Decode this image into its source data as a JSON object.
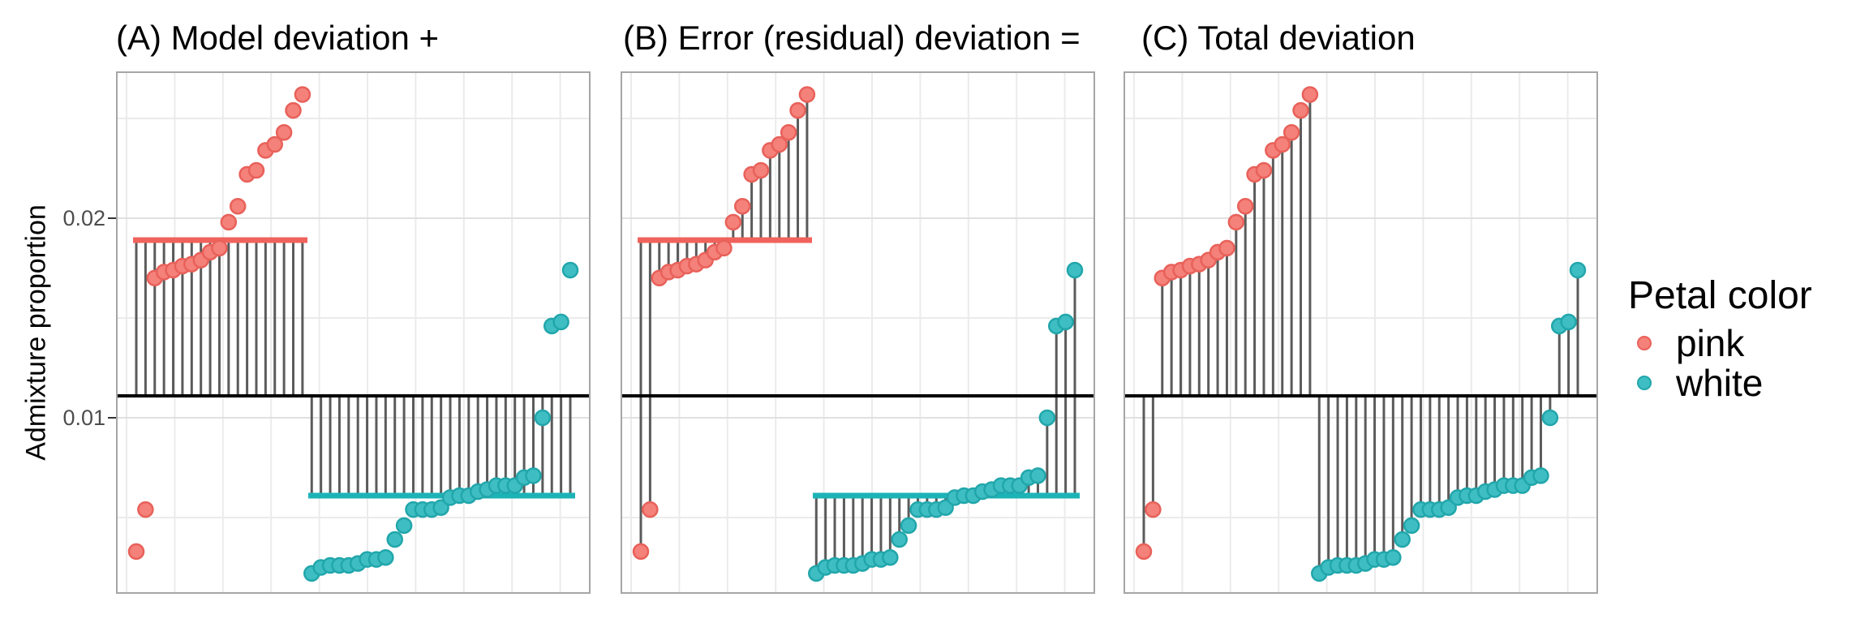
{
  "figure": {
    "panel_titles": {
      "a": "(A) Model deviation +",
      "b": "(B) Error (residual) deviation =",
      "c": "(C) Total deviation"
    },
    "y_axis": {
      "title": "Admixture proportion",
      "ticks": [
        {
          "label": "0.02",
          "value": 0.02
        },
        {
          "label": "0.01",
          "value": 0.01
        }
      ]
    },
    "legend": {
      "title": "Petal color",
      "items": [
        {
          "label": "pink",
          "fill": "#F4817A",
          "stroke": "#E8615A"
        },
        {
          "label": "white",
          "fill": "#3EBEC2",
          "stroke": "#21A6AB"
        }
      ]
    }
  },
  "chart_data": {
    "type": "scatter",
    "title": "ANOVA decomposition of deviations: model + error = total",
    "ylabel": "Admixture proportion",
    "ylim": [
      0.0012,
      0.0274
    ],
    "yticks_major": [
      0.01,
      0.02
    ],
    "yticks_minor": [
      0.005,
      0.015,
      0.025
    ],
    "x_description": "48 individuals ordered within petal-color group by admixture proportion",
    "legend_title": "Petal color",
    "legend_position": "right",
    "grid": true,
    "panels": [
      {
        "id": "A",
        "title": "(A) Model deviation +",
        "segments": "overall_mean_to_group_mean",
        "show_group_mean_lines": true
      },
      {
        "id": "B",
        "title": "(B) Error (residual) deviation =",
        "segments": "group_mean_to_value",
        "show_group_mean_lines": true
      },
      {
        "id": "C",
        "title": "(C) Total deviation",
        "segments": "overall_mean_to_value",
        "show_group_mean_lines": false
      }
    ],
    "series": [
      {
        "name": "pink",
        "n": 19,
        "mean": 0.0189,
        "values": [
          0.0033,
          0.0054,
          0.017,
          0.0173,
          0.0174,
          0.0176,
          0.0177,
          0.0179,
          0.0183,
          0.0185,
          0.0198,
          0.0206,
          0.0222,
          0.0224,
          0.0234,
          0.0237,
          0.0243,
          0.0254,
          0.0262
        ]
      },
      {
        "name": "white",
        "n": 29,
        "mean": 0.0061,
        "values": [
          0.0022,
          0.0025,
          0.0026,
          0.0026,
          0.0026,
          0.0027,
          0.0029,
          0.0029,
          0.003,
          0.0039,
          0.0046,
          0.0054,
          0.0054,
          0.0054,
          0.0055,
          0.006,
          0.0061,
          0.0061,
          0.0063,
          0.0064,
          0.0066,
          0.0066,
          0.0066,
          0.007,
          0.0071,
          0.01,
          0.0146,
          0.0148,
          0.0174
        ]
      }
    ],
    "overall_mean": 0.0111,
    "colors": {
      "pink_point": "#F4817A",
      "pink_point_stroke": "#E8615A",
      "white_point": "#3EBEC2",
      "white_point_stroke": "#21A6AB",
      "pink_mean_line": "#F0625C",
      "white_mean_line": "#1CB3B7",
      "overall_mean_line": "#000000",
      "segment": "#5B5B5B",
      "grid": "#EBEBEB",
      "grid_major": "#E0E0E0",
      "panel_border": "#A6A6A6"
    }
  }
}
